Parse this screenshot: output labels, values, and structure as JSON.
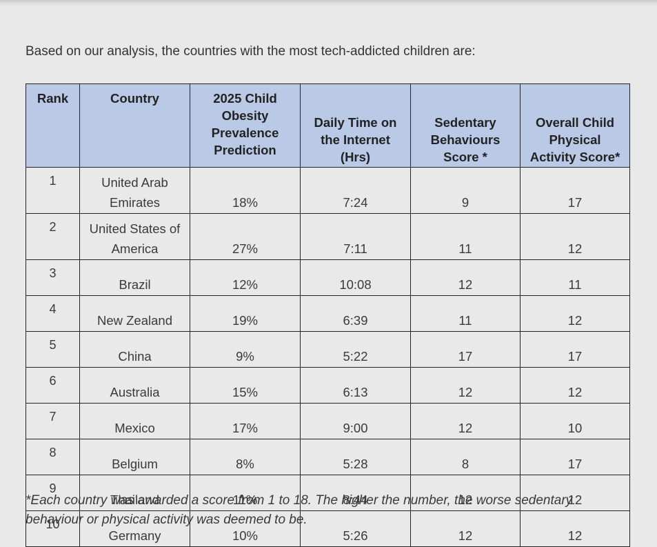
{
  "intro_text": "Based on our analysis, the countries with the most tech-addicted children are:",
  "table": {
    "headers": [
      "Rank",
      "Country",
      "2025 Child Obesity Prevalence Prediction",
      "Daily Time on the Internet (Hrs)",
      "Sedentary Behaviours Score *",
      "Overall Child Physical Activity Score*"
    ],
    "rows": [
      {
        "rank": "1",
        "country": "United Arab Emirates",
        "obesity": "18%",
        "internet": "7:24",
        "sedentary": "9",
        "activity": "17"
      },
      {
        "rank": "2",
        "country": "United States of America",
        "obesity": "27%",
        "internet": "7:11",
        "sedentary": "11",
        "activity": "12"
      },
      {
        "rank": "3",
        "country": "Brazil",
        "obesity": "12%",
        "internet": "10:08",
        "sedentary": "12",
        "activity": "11"
      },
      {
        "rank": "4",
        "country": "New Zealand",
        "obesity": "19%",
        "internet": "6:39",
        "sedentary": "11",
        "activity": "12"
      },
      {
        "rank": "5",
        "country": "China",
        "obesity": "9%",
        "internet": "5:22",
        "sedentary": "17",
        "activity": "17"
      },
      {
        "rank": "6",
        "country": "Australia",
        "obesity": "15%",
        "internet": "6:13",
        "sedentary": "12",
        "activity": "12"
      },
      {
        "rank": "7",
        "country": "Mexico",
        "obesity": "17%",
        "internet": "9:00",
        "sedentary": "12",
        "activity": "10"
      },
      {
        "rank": "8",
        "country": "Belgium",
        "obesity": "8%",
        "internet": "5:28",
        "sedentary": "8",
        "activity": "17"
      },
      {
        "rank": "9",
        "country": "Thailand",
        "obesity": "11%",
        "internet": "8:44",
        "sedentary": "12",
        "activity": "12"
      },
      {
        "rank": "10",
        "country": "Germany",
        "obesity": "10%",
        "internet": "5:26",
        "sedentary": "12",
        "activity": "12"
      }
    ]
  },
  "footnote": "*Each country was awarded a score from 1 to 18. The higher the number, the worse sedentary behaviour or physical activity was deemed to be."
}
